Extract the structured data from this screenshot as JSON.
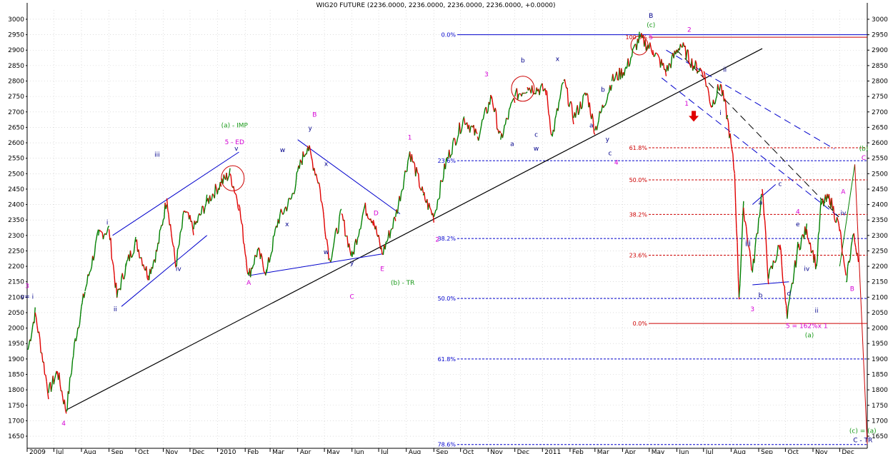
{
  "chart_data": {
    "type": "line",
    "title": "WIG20 FUTURE (2236.0000, 2236.0000, 2236.0000, 2236.0000, +0.0000)",
    "ylim": [
      1620,
      3030
    ],
    "y_ticks": [
      1650,
      1700,
      1750,
      1800,
      1850,
      1900,
      1950,
      2000,
      2050,
      2100,
      2150,
      2200,
      2250,
      2300,
      2350,
      2400,
      2450,
      2500,
      2550,
      2600,
      2650,
      2700,
      2750,
      2800,
      2850,
      2900,
      2950,
      3000
    ],
    "x_labels": [
      "2009",
      "Jul",
      "Aug",
      "Sep",
      "Oct",
      "Nov",
      "Dec",
      "2010",
      "Feb",
      "Mar",
      "Apr",
      "May",
      "Jun",
      "Jul",
      "Aug",
      "Sep",
      "Oct",
      "Nov",
      "Dec",
      "2011",
      "Feb",
      "Mar",
      "Apr",
      "May",
      "Jun",
      "Jul",
      "Aug",
      "Sep",
      "Oct",
      "Nov",
      "Dec"
    ],
    "series": [
      {
        "values": [
          [
            "2009-06-02",
            1930
          ],
          [
            "2009-06-10",
            2050
          ],
          [
            "2009-06-25",
            1790
          ],
          [
            "2009-07-05",
            1860
          ],
          [
            "2009-07-15",
            1730
          ],
          [
            "2009-07-25",
            1960
          ],
          [
            "2009-08-05",
            2120
          ],
          [
            "2009-08-20",
            2300
          ],
          [
            "2009-09-01",
            2320
          ],
          [
            "2009-09-10",
            2100
          ],
          [
            "2009-09-20",
            2200
          ],
          [
            "2009-10-01",
            2280
          ],
          [
            "2009-10-15",
            2170
          ],
          [
            "2009-10-25",
            2250
          ],
          [
            "2009-11-05",
            2420
          ],
          [
            "2009-11-15",
            2200
          ],
          [
            "2009-11-25",
            2380
          ],
          [
            "2009-12-05",
            2320
          ],
          [
            "2009-12-20",
            2410
          ],
          [
            "2010-01-05",
            2470
          ],
          [
            "2010-01-15",
            2500
          ],
          [
            "2010-01-25",
            2400
          ],
          [
            "2010-02-05",
            2170
          ],
          [
            "2010-02-15",
            2250
          ],
          [
            "2010-02-25",
            2180
          ],
          [
            "2010-03-10",
            2350
          ],
          [
            "2010-03-25",
            2420
          ],
          [
            "2010-04-05",
            2540
          ],
          [
            "2010-04-12",
            2590
          ],
          [
            "2010-04-25",
            2470
          ],
          [
            "2010-05-07",
            2220
          ],
          [
            "2010-05-20",
            2370
          ],
          [
            "2010-06-01",
            2230
          ],
          [
            "2010-06-15",
            2390
          ],
          [
            "2010-06-25",
            2350
          ],
          [
            "2010-07-05",
            2240
          ],
          [
            "2010-07-20",
            2360
          ],
          [
            "2010-08-05",
            2570
          ],
          [
            "2010-08-20",
            2430
          ],
          [
            "2010-09-01",
            2360
          ],
          [
            "2010-09-15",
            2540
          ],
          [
            "2010-10-05",
            2680
          ],
          [
            "2010-10-20",
            2620
          ],
          [
            "2010-11-05",
            2750
          ],
          [
            "2010-11-15",
            2610
          ],
          [
            "2010-12-01",
            2750
          ],
          [
            "2010-12-15",
            2780
          ],
          [
            "2011-01-05",
            2770
          ],
          [
            "2011-01-12",
            2620
          ],
          [
            "2011-01-25",
            2800
          ],
          [
            "2011-02-05",
            2680
          ],
          [
            "2011-02-20",
            2760
          ],
          [
            "2011-03-01",
            2640
          ],
          [
            "2011-03-20",
            2800
          ],
          [
            "2011-04-05",
            2840
          ],
          [
            "2011-04-20",
            2940
          ],
          [
            "2011-05-05",
            2900
          ],
          [
            "2011-05-20",
            2830
          ],
          [
            "2011-06-05",
            2920
          ],
          [
            "2011-06-20",
            2850
          ],
          [
            "2011-07-01",
            2830
          ],
          [
            "2011-07-10",
            2720
          ],
          [
            "2011-07-20",
            2790
          ],
          [
            "2011-07-28",
            2680
          ],
          [
            "2011-08-05",
            2500
          ],
          [
            "2011-08-10",
            2100
          ],
          [
            "2011-08-15",
            2390
          ],
          [
            "2011-08-25",
            2180
          ],
          [
            "2011-09-05",
            2450
          ],
          [
            "2011-09-12",
            2160
          ],
          [
            "2011-09-25",
            2270
          ],
          [
            "2011-10-03",
            2030
          ],
          [
            "2011-10-15",
            2260
          ],
          [
            "2011-10-25",
            2320
          ],
          [
            "2011-11-05",
            2200
          ],
          [
            "2011-11-10",
            2400
          ],
          [
            "2011-11-20",
            2420
          ],
          [
            "2011-12-01",
            2320
          ],
          [
            "2011-12-08",
            2150
          ],
          [
            "2011-12-16",
            2300
          ],
          [
            "2011-12-22",
            2236
          ]
        ]
      }
    ],
    "annotations": [
      "3",
      "v= i",
      "4",
      "i",
      "ii",
      "iii",
      "iv",
      "v",
      "(a) - IMP",
      "5 - ED",
      "A",
      "B",
      "C",
      "D",
      "E",
      "y",
      "x",
      "w",
      "x",
      "w",
      "y",
      "(b) - TR",
      "1",
      "2",
      "3",
      "a",
      "b",
      "c",
      "w",
      "x",
      "a",
      "b",
      "c",
      "y",
      "4",
      "B",
      "(c)",
      "5",
      "2",
      "1",
      "i",
      "ii",
      "iii",
      "a",
      "b",
      "c",
      "d",
      "e",
      "iv",
      "4",
      "3",
      "5 = 162%x 1",
      "(a)",
      "A",
      "iii",
      "iv",
      "ii",
      "B",
      "C",
      "(b)",
      "(c) = (a)",
      "C - TR"
    ],
    "fib_blue": [
      [
        "0.0%",
        2950
      ],
      [
        "23.6%",
        2542
      ],
      [
        "38.2%",
        2290
      ],
      [
        "50.0%",
        2096
      ],
      [
        "61.8%",
        1900
      ],
      [
        "78.6%",
        1623
      ]
    ],
    "fib_red": [
      [
        "100.0%",
        2942
      ],
      [
        "61.8%",
        2584
      ],
      [
        "50.0%",
        2480
      ],
      [
        "38.2%",
        2368
      ],
      [
        "23.6%",
        2236
      ],
      [
        "0.0%",
        2015
      ]
    ],
    "colors": {
      "up": "#008000",
      "down": "#e00000",
      "labels_blue": "#00008b",
      "labels_magenta": "#d400d4",
      "labels_green": "#1a9a1a",
      "fib_blue": "#0000cc",
      "fib_red": "#cc0000"
    }
  }
}
